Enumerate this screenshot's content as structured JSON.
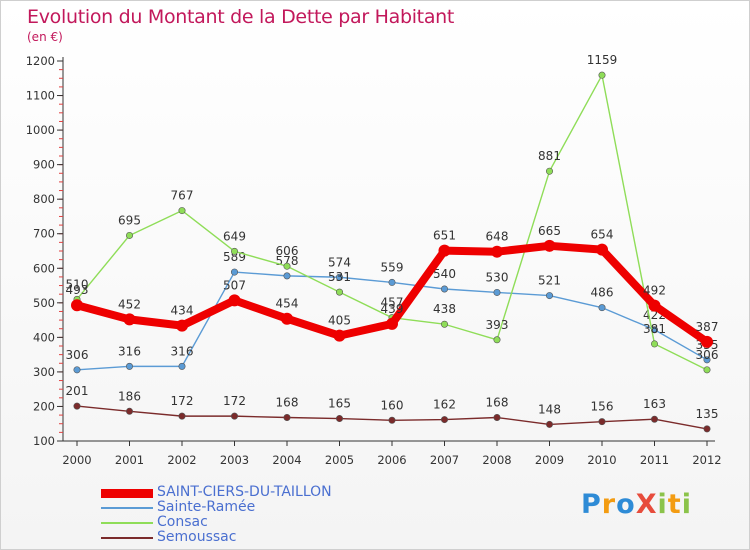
{
  "title": "Evolution du Montant de la Dette par Habitant",
  "subtitle": "(en €)",
  "logo": {
    "text": "ProXiti",
    "letters": [
      {
        "ch": "P",
        "color": "#2e8bd6"
      },
      {
        "ch": "r",
        "color": "#f39c12"
      },
      {
        "ch": "o",
        "color": "#2e8bd6"
      },
      {
        "ch": "X",
        "color": "#e74c3c"
      },
      {
        "ch": "i",
        "color": "#8bc34a"
      },
      {
        "ch": "t",
        "color": "#f39c12"
      },
      {
        "ch": "i",
        "color": "#8bc34a"
      }
    ]
  },
  "chart_data": {
    "type": "line",
    "title": "Evolution du Montant de la Dette par Habitant",
    "subtitle": "(en €)",
    "xlabel": "",
    "ylabel": "",
    "ylim": [
      100,
      1200
    ],
    "yticks": [
      100,
      200,
      300,
      400,
      500,
      600,
      700,
      800,
      900,
      1000,
      1100,
      1200
    ],
    "grid": false,
    "legend_position": "bottom-left",
    "x": [
      "2000",
      "2001",
      "2002",
      "2003",
      "2004",
      "2005",
      "2006",
      "2007",
      "2008",
      "2009",
      "2010",
      "2011",
      "2012"
    ],
    "series": [
      {
        "name": "SAINT-CIERS-DU-TAILLON",
        "color": "#ee0000",
        "emphasis": "thick",
        "values": [
          493,
          452,
          434,
          507,
          454,
          405,
          439,
          651,
          648,
          665,
          654,
          492,
          387
        ]
      },
      {
        "name": "Sainte-Ramée",
        "color": "#5b9bd5",
        "emphasis": "normal",
        "values": [
          306,
          316,
          316,
          589,
          578,
          574,
          559,
          540,
          530,
          521,
          486,
          422,
          335
        ]
      },
      {
        "name": "Consac",
        "color": "#8fdd58",
        "emphasis": "normal",
        "values": [
          510,
          695,
          767,
          649,
          606,
          531,
          457,
          438,
          393,
          881,
          1159,
          381,
          306
        ]
      },
      {
        "name": "Semoussac",
        "color": "#7b2b2b",
        "emphasis": "normal",
        "values": [
          201,
          186,
          172,
          172,
          168,
          165,
          160,
          162,
          168,
          148,
          156,
          163,
          135
        ]
      }
    ]
  }
}
